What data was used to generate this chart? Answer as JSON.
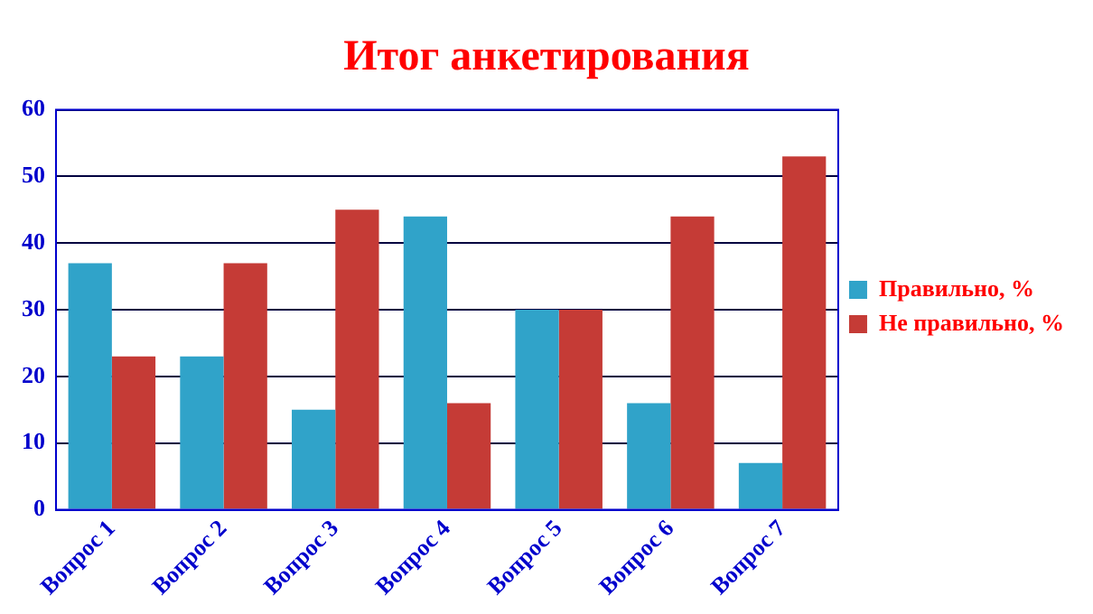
{
  "chart_data": {
    "type": "bar",
    "title": "Итог анкетирования",
    "categories": [
      "Вопрос 1",
      "Вопрос 2",
      "Вопрос 3",
      "Вопрос 4",
      "Вопрос 5",
      "Вопрос 6",
      "Вопрос 7"
    ],
    "series": [
      {
        "name": "Правильно, %",
        "color": "#30a3c9",
        "values": [
          37,
          23,
          15,
          44,
          30,
          16,
          7
        ]
      },
      {
        "name": "Не правильно, %",
        "color": "#c53b36",
        "values": [
          23,
          37,
          45,
          16,
          30,
          44,
          53
        ]
      }
    ],
    "ylim": [
      0,
      60
    ],
    "yticks": [
      0,
      10,
      20,
      30,
      40,
      50,
      60
    ],
    "grid": "y",
    "legend": "right"
  }
}
